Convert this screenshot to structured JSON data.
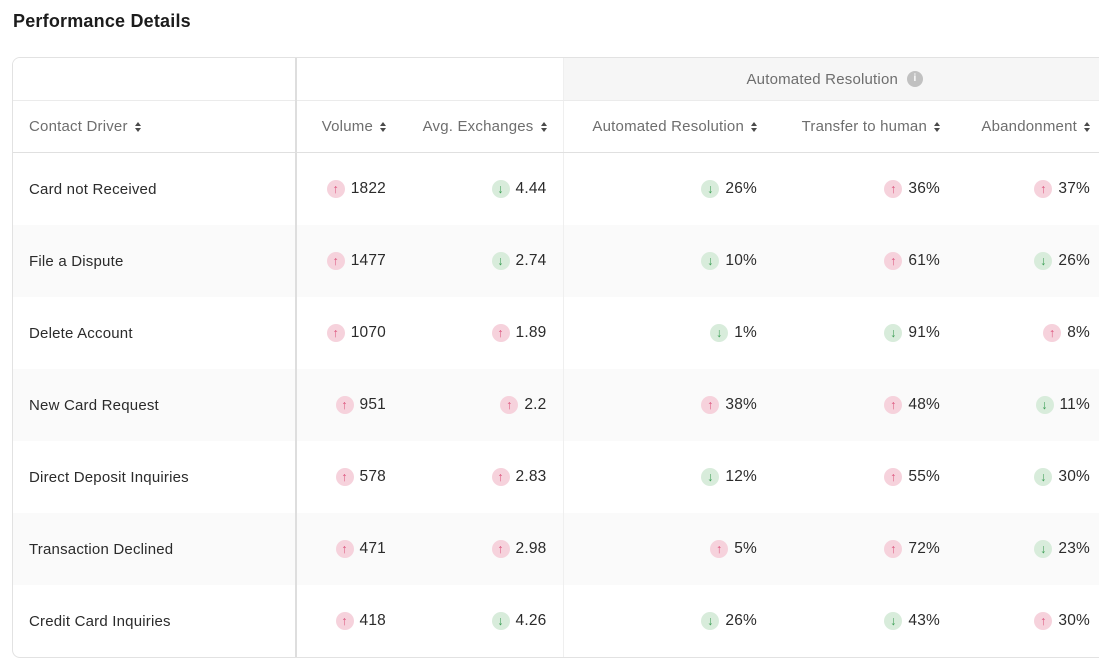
{
  "page": {
    "title": "Performance Details"
  },
  "table": {
    "group_header": {
      "label": "Automated Resolution",
      "info_glyph": "i"
    },
    "columns": [
      {
        "key": "driver",
        "label": "Contact Driver",
        "sortable": true
      },
      {
        "key": "volume",
        "label": "Volume",
        "sortable": true
      },
      {
        "key": "avg_exchanges",
        "label": "Avg. Exchanges",
        "sortable": true
      },
      {
        "key": "automated_resolution",
        "label": "Automated Resolution",
        "sortable": true
      },
      {
        "key": "transfer_to_human",
        "label": "Transfer to human",
        "sortable": true
      },
      {
        "key": "abandonment",
        "label": "Abandonment",
        "sortable": true
      }
    ],
    "icons": {
      "up": "↑",
      "down": "↓"
    },
    "colors": {
      "trend_up_bg": "#f6d2dc",
      "trend_up_fg": "#dc567e",
      "trend_down_bg": "#d8ecdb",
      "trend_down_fg": "#3a9d53"
    },
    "rows": [
      {
        "driver": "Card not Received",
        "volume": {
          "value": "1822",
          "trend": "up"
        },
        "avg_exchanges": {
          "value": "4.44",
          "trend": "down"
        },
        "automated_resolution": {
          "value": "26%",
          "trend": "down"
        },
        "transfer_to_human": {
          "value": "36%",
          "trend": "up"
        },
        "abandonment": {
          "value": "37%",
          "trend": "up"
        }
      },
      {
        "driver": "File a Dispute",
        "volume": {
          "value": "1477",
          "trend": "up"
        },
        "avg_exchanges": {
          "value": "2.74",
          "trend": "down"
        },
        "automated_resolution": {
          "value": "10%",
          "trend": "down"
        },
        "transfer_to_human": {
          "value": "61%",
          "trend": "up"
        },
        "abandonment": {
          "value": "26%",
          "trend": "down"
        }
      },
      {
        "driver": "Delete Account",
        "volume": {
          "value": "1070",
          "trend": "up"
        },
        "avg_exchanges": {
          "value": "1.89",
          "trend": "up"
        },
        "automated_resolution": {
          "value": "1%",
          "trend": "down"
        },
        "transfer_to_human": {
          "value": "91%",
          "trend": "down"
        },
        "abandonment": {
          "value": "8%",
          "trend": "up"
        }
      },
      {
        "driver": "New Card Request",
        "volume": {
          "value": "951",
          "trend": "up"
        },
        "avg_exchanges": {
          "value": "2.2",
          "trend": "up"
        },
        "automated_resolution": {
          "value": "38%",
          "trend": "up"
        },
        "transfer_to_human": {
          "value": "48%",
          "trend": "up"
        },
        "abandonment": {
          "value": "11%",
          "trend": "down"
        }
      },
      {
        "driver": "Direct Deposit Inquiries",
        "volume": {
          "value": "578",
          "trend": "up"
        },
        "avg_exchanges": {
          "value": "2.83",
          "trend": "up"
        },
        "automated_resolution": {
          "value": "12%",
          "trend": "down"
        },
        "transfer_to_human": {
          "value": "55%",
          "trend": "up"
        },
        "abandonment": {
          "value": "30%",
          "trend": "down"
        }
      },
      {
        "driver": "Transaction Declined",
        "volume": {
          "value": "471",
          "trend": "up"
        },
        "avg_exchanges": {
          "value": "2.98",
          "trend": "up"
        },
        "automated_resolution": {
          "value": "5%",
          "trend": "up"
        },
        "transfer_to_human": {
          "value": "72%",
          "trend": "up"
        },
        "abandonment": {
          "value": "23%",
          "trend": "down"
        }
      },
      {
        "driver": "Credit Card Inquiries",
        "volume": {
          "value": "418",
          "trend": "up"
        },
        "avg_exchanges": {
          "value": "4.26",
          "trend": "down"
        },
        "automated_resolution": {
          "value": "26%",
          "trend": "down"
        },
        "transfer_to_human": {
          "value": "43%",
          "trend": "down"
        },
        "abandonment": {
          "value": "30%",
          "trend": "up"
        }
      }
    ]
  }
}
